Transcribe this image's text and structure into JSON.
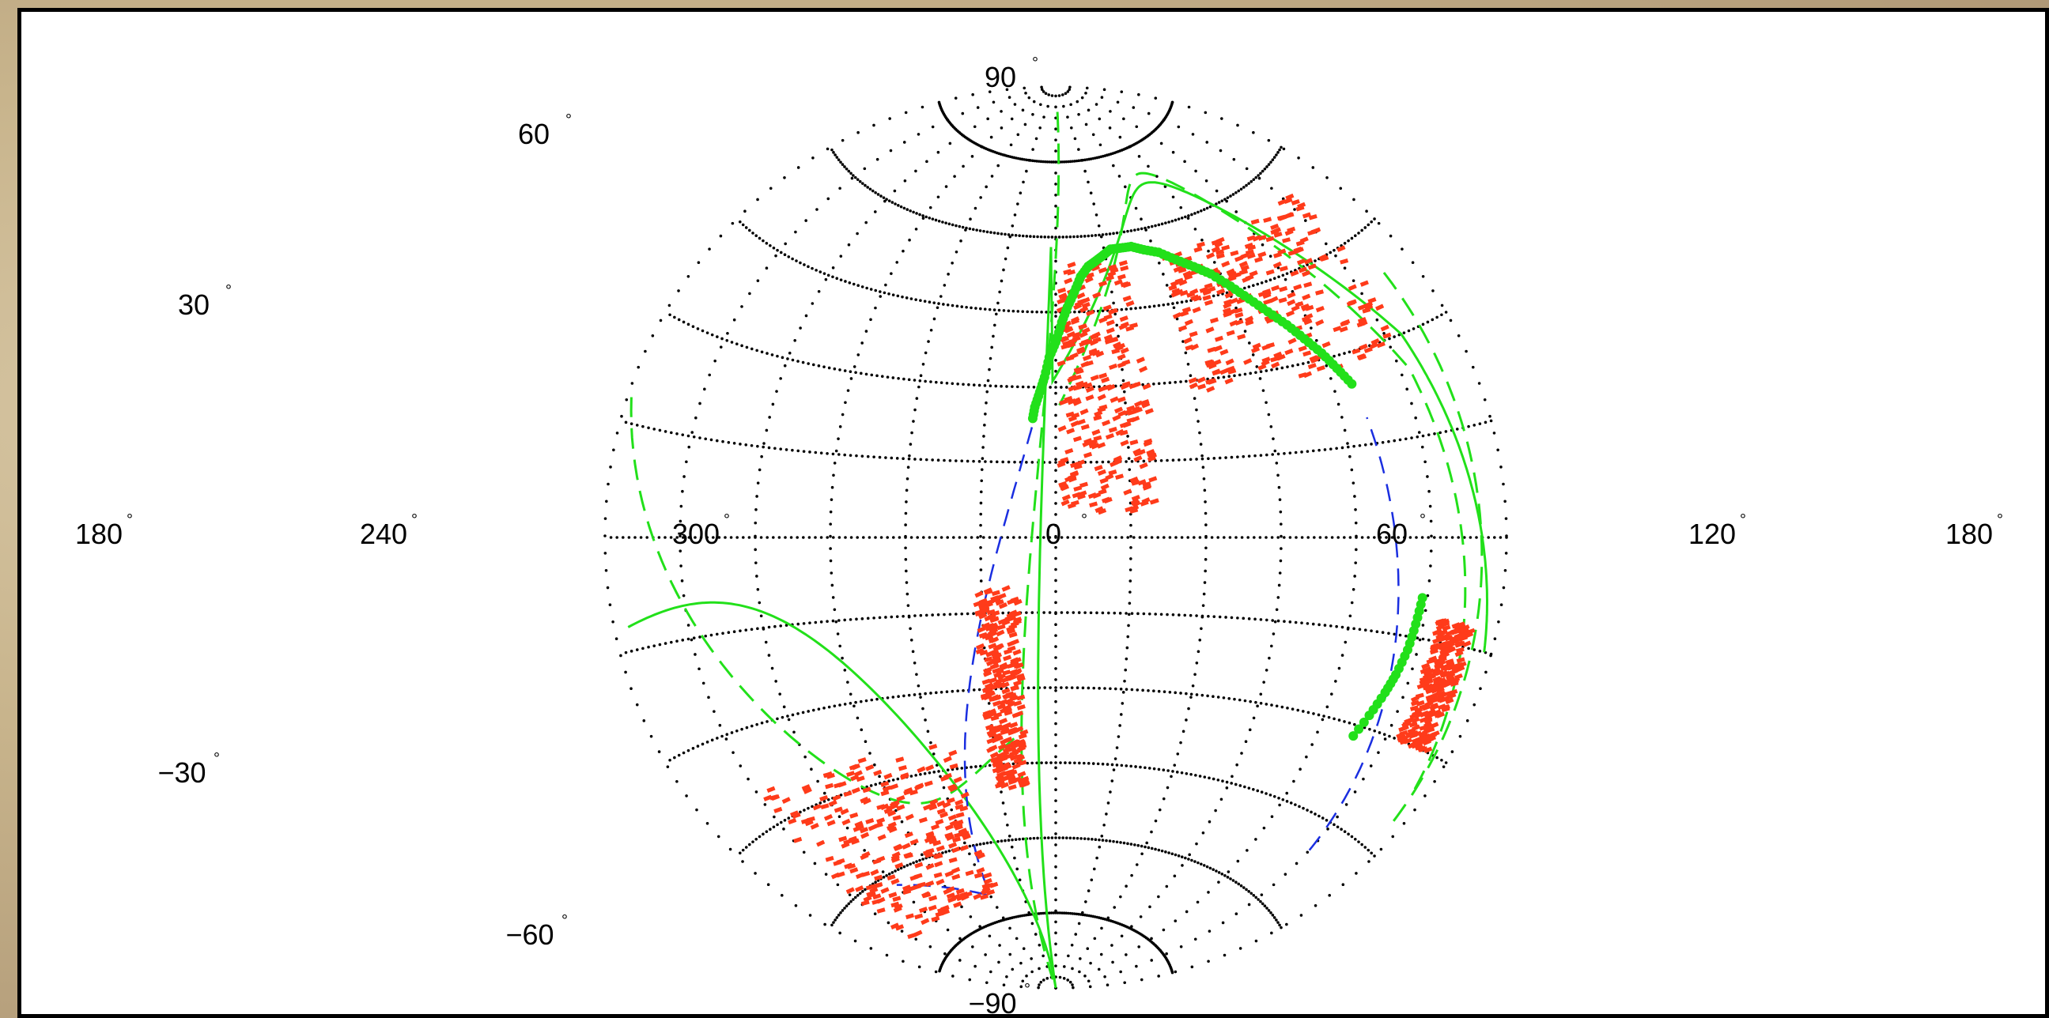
{
  "chart_data": {
    "type": "scatter",
    "projection": "aitoff",
    "grid": true,
    "x_ticks": [
      {
        "label": "180",
        "lon": 180
      },
      {
        "label": "240",
        "lon": 240
      },
      {
        "label": "300",
        "lon": 300
      },
      {
        "label": "0",
        "lon": 0
      },
      {
        "label": "60",
        "lon": 60
      },
      {
        "label": "120",
        "lon": 120
      },
      {
        "label": "180",
        "lon": -180
      }
    ],
    "y_ticks": [
      {
        "label": "90",
        "lat": 90
      },
      {
        "label": "60",
        "lat": 60
      },
      {
        "label": "30",
        "lat": 30
      },
      {
        "label": "−30",
        "lat": -30
      },
      {
        "label": "−60",
        "lat": -60
      },
      {
        "label": "−90",
        "lat": -90
      }
    ],
    "colors": {
      "red": "#ff3b1a",
      "green": "#22e01a",
      "blue": "#1a2ee0",
      "grid": "#000000"
    },
    "series": [
      {
        "kind": "green-dot-track",
        "points": [
          [
            232,
            25
          ],
          [
            236,
            28
          ],
          [
            240,
            31
          ],
          [
            245,
            34
          ],
          [
            250,
            37
          ],
          [
            256,
            40
          ],
          [
            262,
            43
          ],
          [
            268,
            46
          ],
          [
            275,
            49
          ],
          [
            282,
            51
          ],
          [
            290,
            53
          ],
          [
            298,
            55
          ],
          [
            306,
            56
          ],
          [
            313,
            57
          ],
          [
            320,
            57
          ],
          [
            326,
            57
          ],
          [
            331,
            56
          ],
          [
            336,
            55
          ],
          [
            341,
            54
          ],
          [
            346,
            52
          ],
          [
            350,
            49
          ],
          [
            354,
            46
          ],
          [
            357,
            43
          ],
          [
            0,
            39
          ],
          [
            3,
            36
          ],
          [
            5,
            32
          ],
          [
            7,
            29
          ],
          [
            9,
            26
          ],
          [
            10,
            23
          ]
        ]
      },
      {
        "kind": "green-dot-south",
        "points": [
          [
            212,
            -9
          ],
          [
            213,
            -13
          ],
          [
            214,
            -17
          ],
          [
            216,
            -21
          ],
          [
            218,
            -24
          ],
          [
            221,
            -28
          ],
          [
            225,
            -33
          ]
        ]
      },
      {
        "kind": "red-patches",
        "regions": [
          {
            "lon": [
              205,
              300
            ],
            "lat": [
              28,
              55
            ]
          },
          {
            "lon": [
              320,
              358
            ],
            "lat": [
              5,
              55
            ]
          },
          {
            "lon": [
              15,
              32
            ],
            "lat": [
              -50,
              -10
            ]
          },
          {
            "lon": [
              50,
              150
            ],
            "lat": [
              -70,
              -40
            ]
          },
          {
            "lon": [
              190,
              205
            ],
            "lat": [
              -30,
              -12
            ]
          }
        ]
      }
    ]
  }
}
